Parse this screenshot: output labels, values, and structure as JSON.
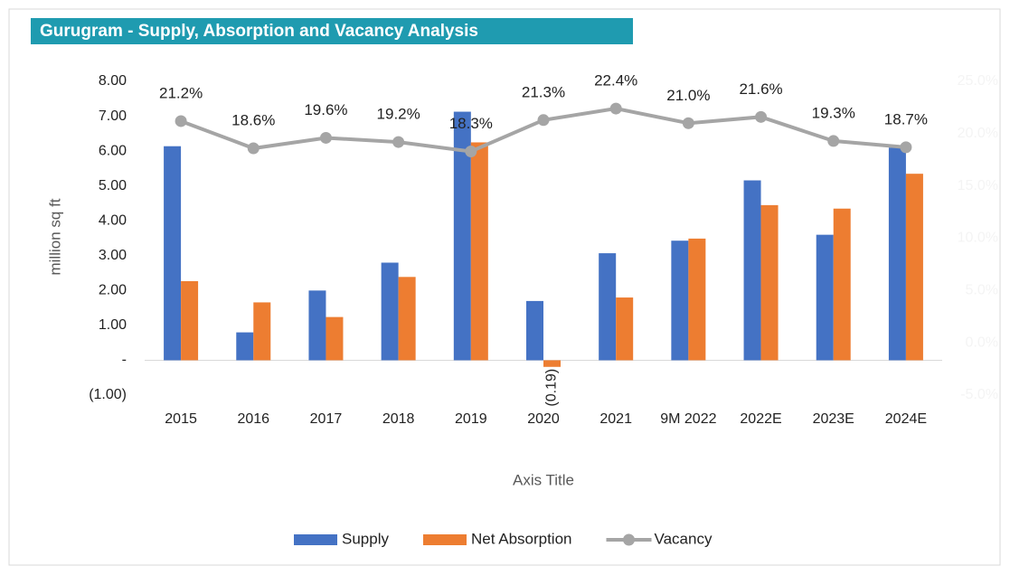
{
  "chart_data": {
    "type": "bar_line",
    "title": "Gurugram  - Supply, Absorption and Vacancy Analysis",
    "y_label": "million sq ft",
    "x_label": "Axis Title",
    "categories": [
      "2015",
      "2016",
      "2017",
      "2018",
      "2019",
      "2020",
      "2021",
      "9M 2022",
      "2022E",
      "2023E",
      "2024E"
    ],
    "series": [
      {
        "name": "Supply",
        "color": "#4472c4",
        "kind": "bar",
        "values": [
          6.14,
          0.8,
          2.0,
          2.8,
          7.13,
          1.7,
          3.07,
          3.43,
          5.16,
          3.6,
          6.1
        ],
        "value_labels": [
          "6.14",
          "0.80",
          "2.00",
          "2.80",
          "7.13",
          "1.70",
          "3.07",
          "3.43",
          "5.16",
          "3.60",
          "6.10"
        ]
      },
      {
        "name": "Net Absorption",
        "color": "#ed7d31",
        "kind": "bar",
        "values": [
          2.27,
          1.66,
          1.24,
          2.39,
          6.25,
          -0.19,
          1.8,
          3.49,
          4.45,
          4.35,
          5.35
        ],
        "value_labels": [
          "2.27",
          "1.66",
          "1.2",
          "2.39",
          "6.25",
          "(0.19)",
          "1.80",
          "3.49",
          "4.45",
          "4.35",
          "5.35"
        ]
      },
      {
        "name": "Vacancy",
        "color": "#a5a5a5",
        "kind": "line",
        "axis": "y2",
        "values": [
          21.2,
          18.6,
          19.6,
          19.2,
          18.3,
          21.3,
          22.4,
          21.0,
          21.6,
          19.3,
          18.7
        ],
        "value_labels": [
          "21.2%",
          "18.6%",
          "19.6%",
          "19.2%",
          "18.3%",
          "21.3%",
          "22.4%",
          "21.0%",
          "21.6%",
          "19.3%",
          "18.7%"
        ]
      }
    ],
    "ylim": [
      -1,
      8
    ],
    "yticks": [
      {
        "value": -1,
        "label": "(1.00)"
      },
      {
        "value": 0,
        "label": "-"
      },
      {
        "value": 1,
        "label": "1.00"
      },
      {
        "value": 2,
        "label": "2.00"
      },
      {
        "value": 3,
        "label": "3.00"
      },
      {
        "value": 4,
        "label": "4.00"
      },
      {
        "value": 5,
        "label": "5.00"
      },
      {
        "value": 6,
        "label": "6.00"
      },
      {
        "value": 7,
        "label": "7.00"
      },
      {
        "value": 8,
        "label": "8.00"
      }
    ],
    "y2lim": [
      -5,
      25
    ],
    "y2ticks": [
      {
        "value": -5,
        "label": "-5.0%"
      },
      {
        "value": 0,
        "label": "0.0%"
      },
      {
        "value": 5,
        "label": "5.0%"
      },
      {
        "value": 10,
        "label": "10.0%"
      },
      {
        "value": 15,
        "label": "15.0%"
      },
      {
        "value": 20,
        "label": "20.0%"
      },
      {
        "value": 25,
        "label": "25.0%"
      }
    ],
    "y2_color": "#f4f4f4",
    "grid": false,
    "legend": "bottom"
  }
}
